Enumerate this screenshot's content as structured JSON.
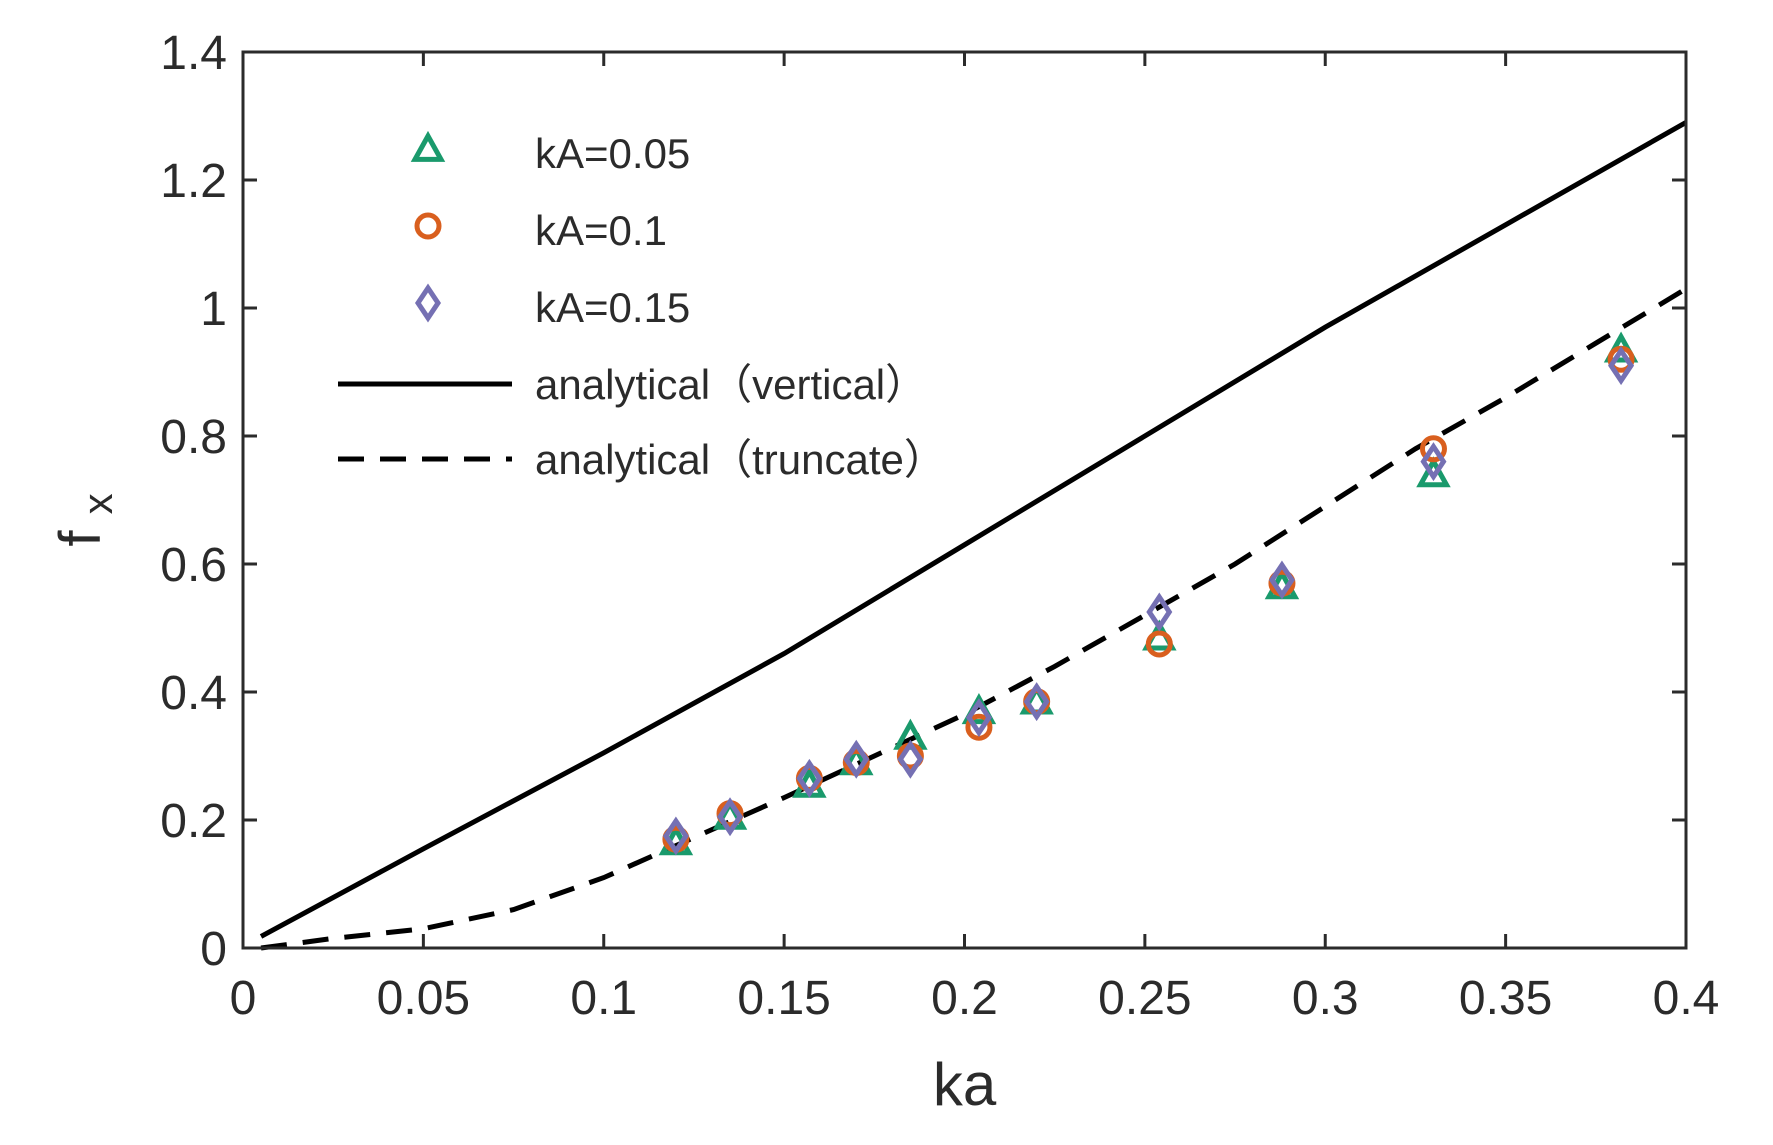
{
  "chart_data": {
    "type": "scatter",
    "title": "",
    "xlabel": "ka",
    "ylabel_base": "f",
    "ylabel_sub": "x",
    "xlim": [
      0,
      0.4
    ],
    "ylim": [
      0,
      1.4
    ],
    "xticks": [
      0,
      0.05,
      0.1,
      0.15,
      0.2,
      0.25,
      0.3,
      0.35,
      0.4
    ],
    "xtick_labels": [
      "0",
      "0.05",
      "0.1",
      "0.15",
      "0.2",
      "0.25",
      "0.3",
      "0.35",
      "0.4"
    ],
    "yticks": [
      0,
      0.2,
      0.4,
      0.6,
      0.8,
      1.0,
      1.2,
      1.4
    ],
    "ytick_labels": [
      "0",
      "0.2",
      "0.4",
      "0.6",
      "0.8",
      "1",
      "1.2",
      "1.4"
    ],
    "legend_position": "top-left",
    "grid": false,
    "series": [
      {
        "name": "kA=0.05",
        "marker": "triangle",
        "color": "#1a9a6c",
        "points": [
          [
            0.12,
            0.165
          ],
          [
            0.135,
            0.205
          ],
          [
            0.157,
            0.255
          ],
          [
            0.17,
            0.29
          ],
          [
            0.185,
            0.33
          ],
          [
            0.204,
            0.37
          ],
          [
            0.22,
            0.385
          ],
          [
            0.254,
            0.485
          ],
          [
            0.288,
            0.565
          ],
          [
            0.33,
            0.74
          ],
          [
            0.382,
            0.935
          ]
        ]
      },
      {
        "name": "kA=0.1",
        "marker": "circle",
        "color": "#d95f1e",
        "points": [
          [
            0.12,
            0.17
          ],
          [
            0.135,
            0.21
          ],
          [
            0.157,
            0.265
          ],
          [
            0.17,
            0.29
          ],
          [
            0.185,
            0.3
          ],
          [
            0.204,
            0.345
          ],
          [
            0.22,
            0.385
          ],
          [
            0.254,
            0.475
          ],
          [
            0.288,
            0.57
          ],
          [
            0.33,
            0.78
          ],
          [
            0.382,
            0.92
          ]
        ]
      },
      {
        "name": "kA=0.15",
        "marker": "diamond",
        "color": "#7570b3",
        "points": [
          [
            0.12,
            0.175
          ],
          [
            0.135,
            0.205
          ],
          [
            0.157,
            0.265
          ],
          [
            0.17,
            0.295
          ],
          [
            0.185,
            0.295
          ],
          [
            0.204,
            0.36
          ],
          [
            0.22,
            0.385
          ],
          [
            0.254,
            0.525
          ],
          [
            0.288,
            0.575
          ],
          [
            0.33,
            0.76
          ],
          [
            0.382,
            0.91
          ]
        ]
      },
      {
        "name": "analytical（vertical）",
        "line_style": "solid",
        "color": "#000000",
        "points": [
          [
            0.005,
            0.018
          ],
          [
            0.05,
            0.155
          ],
          [
            0.1,
            0.305
          ],
          [
            0.15,
            0.46
          ],
          [
            0.2,
            0.63
          ],
          [
            0.25,
            0.8
          ],
          [
            0.3,
            0.97
          ],
          [
            0.35,
            1.13
          ],
          [
            0.4,
            1.29
          ]
        ]
      },
      {
        "name": "analytical（truncate）",
        "line_style": "dashed",
        "color": "#000000",
        "points": [
          [
            0.005,
            0.0
          ],
          [
            0.025,
            0.015
          ],
          [
            0.05,
            0.03
          ],
          [
            0.075,
            0.06
          ],
          [
            0.1,
            0.11
          ],
          [
            0.12,
            0.16
          ],
          [
            0.15,
            0.235
          ],
          [
            0.175,
            0.3
          ],
          [
            0.2,
            0.365
          ],
          [
            0.225,
            0.44
          ],
          [
            0.25,
            0.52
          ],
          [
            0.275,
            0.6
          ],
          [
            0.3,
            0.69
          ],
          [
            0.325,
            0.78
          ],
          [
            0.35,
            0.86
          ],
          [
            0.375,
            0.945
          ],
          [
            0.4,
            1.03
          ]
        ]
      }
    ]
  }
}
